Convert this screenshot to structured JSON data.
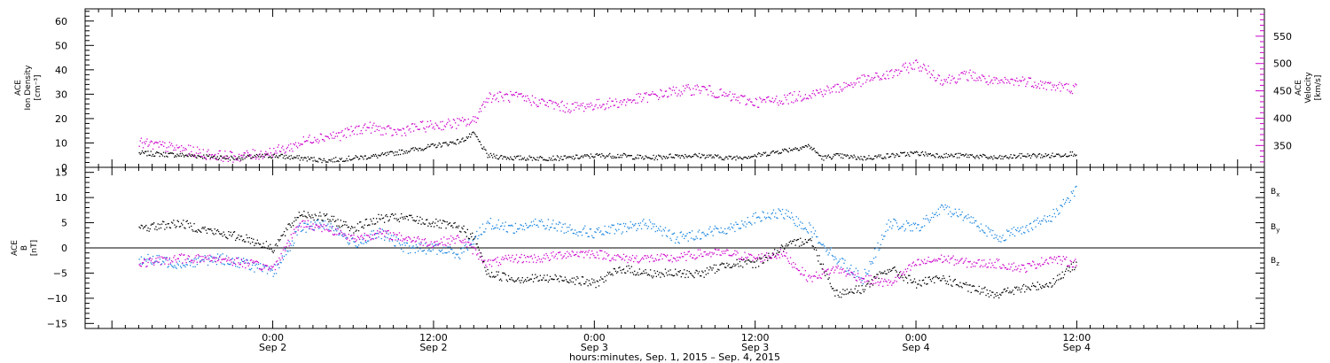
{
  "chart_data": [
    {
      "type": "scatter",
      "panel": "top",
      "ylabel_left": [
        "ACE",
        "Ion Density",
        "[cm⁻³]"
      ],
      "ylabel_right": [
        "ACE",
        "Velocity",
        "[km/s]"
      ],
      "y_left": {
        "lim": [
          0,
          65
        ],
        "ticks": [
          "0",
          "10",
          "20",
          "30",
          "40",
          "50",
          "60"
        ]
      },
      "y_right": {
        "lim": [
          310,
          600
        ],
        "ticks": [
          "350",
          "400",
          "450",
          "500",
          "550"
        ]
      },
      "series": [
        {
          "axis": "left",
          "color": "#000000",
          "x": [
            -10,
            -6,
            -3,
            0,
            2,
            4,
            6,
            8,
            10,
            12,
            14,
            15,
            16,
            18,
            20,
            22,
            24,
            26,
            28,
            30,
            32,
            34,
            36,
            38,
            40,
            41,
            42,
            44,
            46,
            48,
            50,
            52,
            54,
            56,
            58,
            60
          ],
          "y": [
            6,
            5,
            4,
            5,
            4,
            3,
            4,
            5,
            7,
            9,
            11,
            14,
            5,
            4,
            4,
            4,
            5,
            5,
            4,
            5,
            5,
            4,
            5,
            7,
            9,
            4,
            5,
            4,
            5,
            6,
            5,
            5,
            4,
            5,
            5,
            6
          ]
        },
        {
          "axis": "right",
          "color": "#cc00cc",
          "x": [
            -10,
            -7,
            -5,
            -3,
            -1,
            1,
            3,
            5,
            7,
            9,
            11,
            13,
            15,
            16,
            18,
            20,
            22,
            24,
            26,
            28,
            30,
            32,
            34,
            36,
            38,
            40,
            42,
            44,
            46,
            48,
            50,
            52,
            54,
            56,
            58,
            60
          ],
          "y": [
            355,
            345,
            335,
            330,
            335,
            345,
            365,
            370,
            385,
            375,
            385,
            390,
            395,
            440,
            440,
            430,
            420,
            425,
            430,
            440,
            450,
            455,
            440,
            430,
            435,
            445,
            455,
            470,
            480,
            500,
            470,
            480,
            465,
            470,
            460,
            455
          ]
        }
      ]
    },
    {
      "type": "scatter",
      "panel": "bottom",
      "ylabel": [
        "ACE",
        "B",
        "[nT]"
      ],
      "ylim": [
        -16,
        16
      ],
      "y_ticks": [
        "−15",
        "−10",
        "−5",
        "0",
        "5",
        "10",
        "15"
      ],
      "zero_line": true,
      "series": [
        {
          "name": "Bx",
          "label_main": "B",
          "label_sub": "x",
          "color": "#000000",
          "x": [
            -10,
            -7,
            -4,
            -2,
            0,
            2,
            4,
            6,
            8,
            10,
            12,
            14,
            15,
            16,
            18,
            20,
            22,
            24,
            26,
            28,
            30,
            32,
            34,
            36,
            38,
            40,
            42,
            44,
            46,
            48,
            50,
            52,
            54,
            56,
            58,
            60
          ],
          "y": [
            4,
            5,
            3,
            2,
            0,
            7,
            6,
            4,
            6,
            6,
            5,
            4,
            2,
            -5,
            -6,
            -6,
            -6,
            -7,
            -4,
            -5,
            -5,
            -5,
            -3,
            -3,
            0,
            2,
            -9,
            -8,
            -4,
            -7,
            -6,
            -8,
            -9,
            -8,
            -7,
            -3
          ]
        },
        {
          "name": "By",
          "label_main": "B",
          "label_sub": "y",
          "color": "#1a85e0",
          "x": [
            -10,
            -7,
            -4,
            -2,
            0,
            2,
            4,
            6,
            8,
            10,
            12,
            14,
            16,
            18,
            20,
            22,
            24,
            26,
            28,
            30,
            32,
            34,
            36,
            38,
            40,
            42,
            44,
            46,
            48,
            50,
            52,
            54,
            56,
            58,
            60
          ],
          "y": [
            -2,
            -3,
            -2,
            -3,
            -5,
            4,
            5,
            1,
            3,
            0,
            0,
            -1,
            5,
            4,
            5,
            4,
            3,
            4,
            5,
            2,
            3,
            4,
            6,
            7,
            4,
            -2,
            -6,
            5,
            4,
            8,
            6,
            2,
            4,
            6,
            12
          ]
        },
        {
          "name": "Bz",
          "label_main": "B",
          "label_sub": "z",
          "color": "#cc00cc",
          "x": [
            -10,
            -7,
            -4,
            -2,
            0,
            2,
            4,
            6,
            8,
            10,
            12,
            14,
            16,
            18,
            20,
            22,
            24,
            26,
            28,
            30,
            32,
            34,
            36,
            38,
            40,
            42,
            44,
            46,
            48,
            50,
            52,
            54,
            56,
            58,
            60
          ],
          "y": [
            -3,
            -2,
            -2,
            -3,
            -4,
            5,
            4,
            2,
            3,
            2,
            1,
            2,
            -3,
            -2,
            -2,
            -1,
            -1,
            -2,
            -2,
            -2,
            -1,
            -1,
            -2,
            -1,
            -6,
            -4,
            -6,
            -7,
            -3,
            -2,
            -3,
            -3,
            -4,
            -2,
            -3
          ]
        }
      ]
    }
  ],
  "x_axis": {
    "lim": [
      -14,
      74
    ],
    "major_ticks": [
      {
        "x": 0,
        "time": "0:00",
        "date": "Sep 2"
      },
      {
        "x": 12,
        "time": "12:00",
        "date": "Sep 2"
      },
      {
        "x": 24,
        "time": "0:00",
        "date": "Sep 3"
      },
      {
        "x": 36,
        "time": "12:00",
        "date": "Sep 3"
      },
      {
        "x": 48,
        "time": "0:00",
        "date": "Sep 4"
      },
      {
        "x": 60,
        "time": "12:00",
        "date": "Sep 4"
      }
    ],
    "title": "hours:minutes, Sep.  1, 2015 – Sep.  4, 2015"
  }
}
